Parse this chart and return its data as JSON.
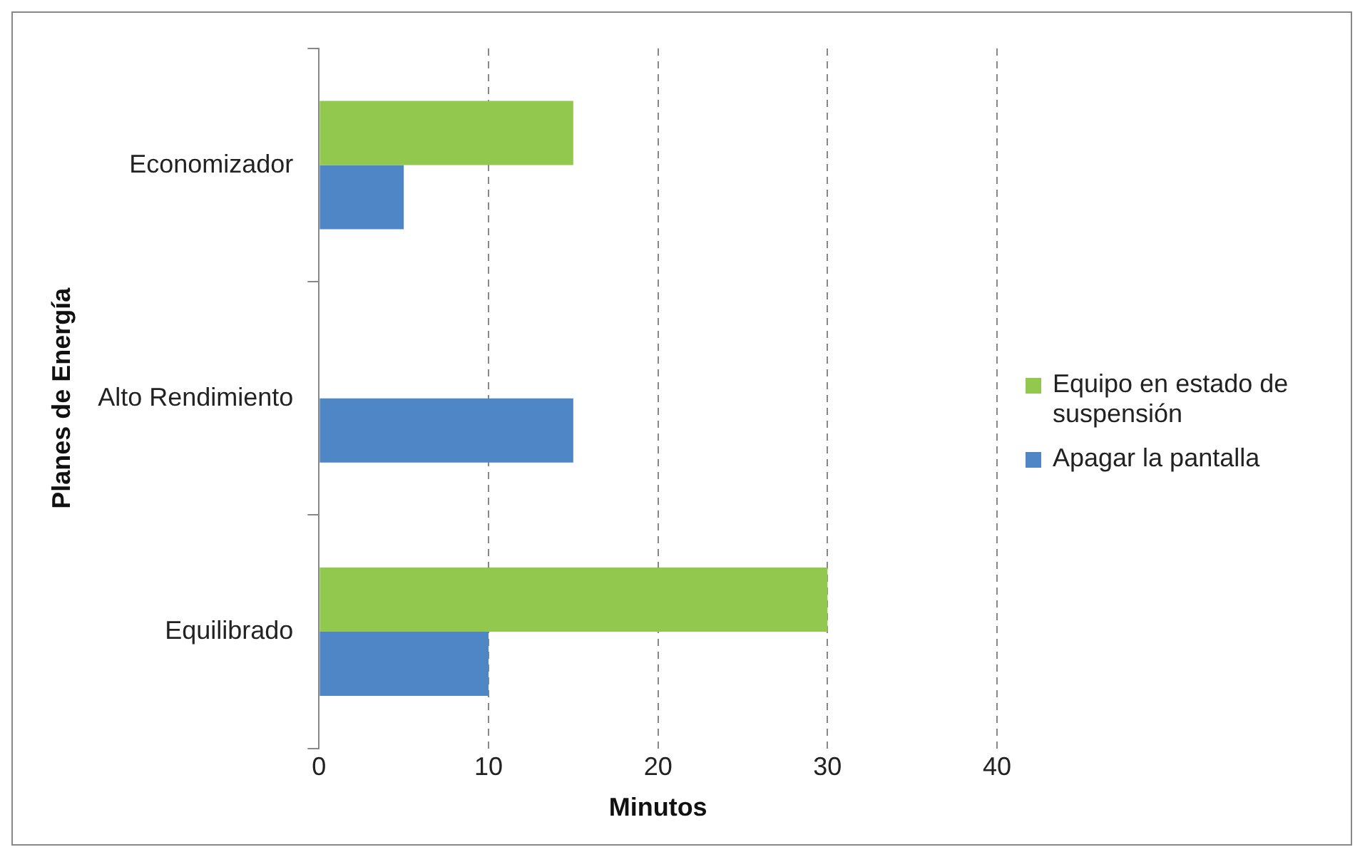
{
  "chart_data": {
    "type": "bar",
    "orientation": "horizontal",
    "xlabel": "Minutos",
    "ylabel": "Planes de Energía",
    "categories": [
      "Economizador",
      "Alto Rendimiento",
      "Equilibrado"
    ],
    "series": [
      {
        "name": "Equipo en estado de suspensión",
        "color": "#92c84e",
        "values": [
          15,
          null,
          30
        ]
      },
      {
        "name": "Apagar la pantalla",
        "color": "#4f86c6",
        "values": [
          5,
          15,
          10
        ]
      }
    ],
    "xlim": [
      0,
      40
    ],
    "xticks": [
      0,
      10,
      20,
      30,
      40
    ],
    "grid": "x",
    "legend": "right"
  }
}
